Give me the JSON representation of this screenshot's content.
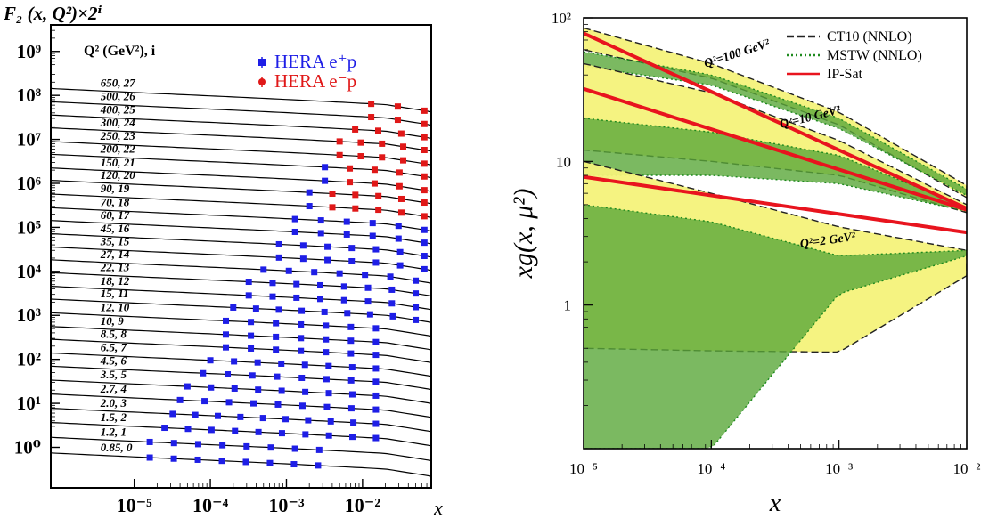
{
  "chart_data": [
    {
      "type": "scatter",
      "title": "F₂ (x, Q²)×2ⁱ",
      "xlabel": "x",
      "ylabel": "",
      "x_scale": "log",
      "y_scale": "log",
      "xlim": [
        8e-07,
        0.08
      ],
      "ylim": [
        0.12,
        4000000000
      ],
      "x_ticks": [
        {
          "v": 1e-05,
          "label": "10⁻⁵"
        },
        {
          "v": 0.0001,
          "label": "10⁻⁴"
        },
        {
          "v": 0.001,
          "label": "10⁻³"
        },
        {
          "v": 0.01,
          "label": "10⁻²"
        }
      ],
      "y_ticks": [
        {
          "v": 1,
          "label": "10⁰"
        },
        {
          "v": 10,
          "label": "10¹"
        },
        {
          "v": 100,
          "label": "10²"
        },
        {
          "v": 1000,
          "label": "10³"
        },
        {
          "v": 10000,
          "label": "10⁴"
        },
        {
          "v": 100000,
          "label": "10⁵"
        },
        {
          "v": 1000000,
          "label": "10⁶"
        },
        {
          "v": 10000000,
          "label": "10⁷"
        },
        {
          "v": 100000000,
          "label": "10⁸"
        },
        {
          "v": 1000000000,
          "label": "10⁹"
        }
      ],
      "legend_title": "Q² (GeV²), i",
      "legend_position": "top-right",
      "legend": [
        {
          "name": "HERA e⁺p",
          "color": "#1e1ee6"
        },
        {
          "name": "HERA e⁻p",
          "color": "#e01818"
        }
      ],
      "bin_labels": [
        "0.85, 0",
        "1.2, 1",
        "1.5, 2",
        "2.0, 3",
        "2.7, 4",
        "3.5, 5",
        "4.5, 6",
        "6.5, 7",
        "8.5, 8",
        "10, 9",
        "12, 10",
        "15, 11",
        "18, 12",
        "22, 13",
        "27, 14",
        "35, 15",
        "45, 16",
        "60, 17",
        "70, 18",
        "90, 19",
        "120, 20",
        "150, 21",
        "200, 22",
        "250, 23",
        "300, 24",
        "400, 25",
        "500, 26",
        "650, 27"
      ],
      "bins": [
        {
          "q2": 0.85,
          "i": 0,
          "f2": 0.6,
          "xmin": 1.6e-05,
          "xmax": 0.0026
        },
        {
          "q2": 1.2,
          "i": 1,
          "f2": 0.68,
          "xmin": 1.6e-05,
          "xmax": 0.0027
        },
        {
          "q2": 1.5,
          "i": 2,
          "f2": 0.74,
          "xmin": 2.5e-05,
          "xmax": 0.015
        },
        {
          "q2": 2.0,
          "i": 3,
          "f2": 0.78,
          "xmin": 3.2e-05,
          "xmax": 0.015
        },
        {
          "q2": 2.7,
          "i": 4,
          "f2": 0.82,
          "xmin": 4e-05,
          "xmax": 0.015
        },
        {
          "q2": 3.5,
          "i": 5,
          "f2": 0.85,
          "xmin": 5e-05,
          "xmax": 0.015
        },
        {
          "q2": 4.5,
          "i": 6,
          "f2": 0.88,
          "xmin": 8e-05,
          "xmax": 0.015
        },
        {
          "q2": 6.5,
          "i": 7,
          "f2": 0.88,
          "xmin": 0.0001,
          "xmax": 0.015
        },
        {
          "q2": 8.5,
          "i": 8,
          "f2": 0.9,
          "xmin": 0.00016,
          "xmax": 0.015
        },
        {
          "q2": 10,
          "i": 9,
          "f2": 0.88,
          "xmin": 0.00016,
          "xmax": 0.015
        },
        {
          "q2": 12,
          "i": 10,
          "f2": 0.9,
          "xmin": 0.00016,
          "xmax": 0.015
        },
        {
          "q2": 15,
          "i": 11,
          "f2": 0.92,
          "xmin": 0.0002,
          "xmax": 0.05
        },
        {
          "q2": 18,
          "i": 12,
          "f2": 0.9,
          "xmin": 0.00032,
          "xmax": 0.05
        },
        {
          "q2": 22,
          "i": 13,
          "f2": 0.92,
          "xmin": 0.00032,
          "xmax": 0.05
        },
        {
          "q2": 27,
          "i": 14,
          "f2": 0.9,
          "xmin": 0.0005,
          "xmax": 0.05
        },
        {
          "q2": 35,
          "i": 15,
          "f2": 0.88,
          "xmin": 0.0008,
          "xmax": 0.065
        },
        {
          "q2": 45,
          "i": 16,
          "f2": 0.88,
          "xmin": 0.0008,
          "xmax": 0.065
        },
        {
          "q2": 60,
          "i": 17,
          "f2": 0.88,
          "xmin": 0.0013,
          "xmax": 0.065
        },
        {
          "q2": 70,
          "i": 18,
          "f2": 0.86,
          "xmin": 0.0013,
          "xmax": 0.065
        },
        {
          "q2": 90,
          "i": 19,
          "f2": 0.88,
          "xmin": 0.002,
          "xmax": 0.065
        },
        {
          "q2": 120,
          "i": 20,
          "f2": 0.9,
          "xmin": 0.002,
          "xmax": 0.065
        },
        {
          "q2": 150,
          "i": 21,
          "f2": 0.86,
          "xmin": 0.0032,
          "xmax": 0.065
        },
        {
          "q2": 200,
          "i": 22,
          "f2": 0.88,
          "xmin": 0.0032,
          "xmax": 0.065
        },
        {
          "q2": 250,
          "i": 23,
          "f2": 0.86,
          "xmin": 0.005,
          "xmax": 0.065
        },
        {
          "q2": 300,
          "i": 24,
          "f2": 0.88,
          "xmin": 0.005,
          "xmax": 0.065
        },
        {
          "q2": 400,
          "i": 25,
          "f2": 0.86,
          "xmin": 0.008,
          "xmax": 0.065
        },
        {
          "q2": 500,
          "i": 26,
          "f2": 0.86,
          "xmin": 0.013,
          "xmax": 0.065
        },
        {
          "q2": 650,
          "i": 27,
          "f2": 0.86,
          "xmin": 0.013,
          "xmax": 0.065
        }
      ],
      "epm_bin_min": 19,
      "curve_description": "Solid black model curves, one per Q² bin, over the full x range"
    },
    {
      "type": "area",
      "xlabel": "x",
      "ylabel": "xg(x, μ²)",
      "x_scale": "log",
      "y_scale": "log",
      "xlim": [
        1e-05,
        0.01
      ],
      "ylim": [
        0.1,
        100
      ],
      "x_ticks": [
        {
          "v": 1e-05,
          "label": "10⁻⁵"
        },
        {
          "v": 0.0001,
          "label": "10⁻⁴"
        },
        {
          "v": 0.001,
          "label": "10⁻³"
        },
        {
          "v": 0.01,
          "label": "10⁻²"
        }
      ],
      "y_ticks": [
        {
          "v": 1,
          "label": "1"
        },
        {
          "v": 10,
          "label": "10"
        },
        {
          "v": 100,
          "label": "10²"
        }
      ],
      "legend_position": "top-right",
      "legend": [
        {
          "name": "CT10 (NNLO)",
          "style": "dashed",
          "color": "#222222"
        },
        {
          "name": "MSTW (NNLO)",
          "style": "dotted",
          "color": "#1e8a1e"
        },
        {
          "name": "IP-Sat",
          "style": "solid",
          "color": "#e8141e"
        }
      ],
      "annotations": [
        {
          "text": "Q²=100 GeV²"
        },
        {
          "text": "Q²=10 GeV²"
        },
        {
          "text": "Q²=2 GeV²"
        }
      ],
      "series": [
        {
          "name": "IP-Sat",
          "q2": 100,
          "x": [
            1e-05,
            0.01
          ],
          "y": [
            78,
            4.7
          ]
        },
        {
          "name": "IP-Sat",
          "q2": 10,
          "x": [
            1e-05,
            0.01
          ],
          "y": [
            32,
            4.6
          ]
        },
        {
          "name": "IP-Sat",
          "q2": 2,
          "x": [
            1e-05,
            0.01
          ],
          "y": [
            7.8,
            3.2
          ]
        },
        {
          "name": "CT10 (NNLO)",
          "q2": 100,
          "band": true,
          "x": [
            1e-05,
            0.0001,
            0.001,
            0.01
          ],
          "upper": [
            85,
            48,
            22,
            6.8
          ],
          "lower": [
            60,
            38,
            18,
            5.6
          ]
        },
        {
          "name": "MSTW (NNLO)",
          "q2": 100,
          "band": true,
          "x": [
            1e-05,
            0.0001,
            0.001,
            0.01
          ],
          "upper": [
            58,
            40,
            20,
            6.4
          ],
          "lower": [
            46,
            34,
            17,
            5.8
          ]
        },
        {
          "name": "CT10 (NNLO)",
          "q2": 10,
          "band": true,
          "x": [
            1e-05,
            0.0001,
            0.001,
            0.01
          ],
          "upper": [
            48,
            30,
            14,
            5.0
          ],
          "lower": [
            12,
            10,
            8,
            4.4
          ]
        },
        {
          "name": "MSTW (NNLO)",
          "q2": 10,
          "band": true,
          "x": [
            1e-05,
            0.0001,
            0.001,
            0.01
          ],
          "upper": [
            20,
            16,
            11,
            4.8
          ],
          "lower": [
            8,
            8,
            7,
            4.5
          ]
        },
        {
          "name": "CT10 (NNLO)",
          "q2": 2,
          "band": true,
          "x": [
            1e-05,
            0.0001,
            0.001,
            0.01
          ],
          "upper": [
            10,
            6,
            3.5,
            2.4
          ],
          "lower": [
            0.5,
            0.48,
            0.47,
            1.6
          ]
        },
        {
          "name": "MSTW (NNLO)",
          "q2": 2,
          "band": true,
          "x": [
            1e-05,
            0.0001,
            0.001,
            0.01
          ],
          "upper": [
            5,
            3.8,
            2.2,
            2.4
          ],
          "lower": [
            0.1,
            0.1,
            1.2,
            2.2
          ]
        }
      ]
    }
  ]
}
